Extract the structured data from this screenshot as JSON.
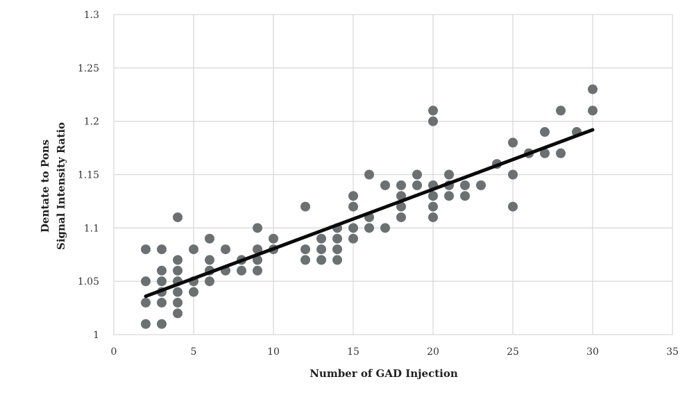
{
  "chart_data": {
    "type": "scatter",
    "xlabel": "Number of GAD Injection",
    "ylabel_lines": [
      "Dentate to Pons",
      "Signal Intensity Ratio"
    ],
    "xlim": [
      0,
      35
    ],
    "ylim": [
      1,
      1.3
    ],
    "x_ticks": [
      0,
      5,
      10,
      15,
      20,
      25,
      30,
      35
    ],
    "y_ticks": [
      1,
      1.05,
      1.1,
      1.15,
      1.2,
      1.25,
      1.3
    ],
    "x_tick_labels": [
      "0",
      "5",
      "10",
      "15",
      "20",
      "25",
      "30",
      "35"
    ],
    "y_tick_labels": [
      "1",
      "1.05",
      "1.1",
      "1.15",
      "1.2",
      "1.25",
      "1.3"
    ],
    "grid": true,
    "legend": "none",
    "colors": {
      "points": "#6b7073",
      "trendline": "#0a0a0a",
      "grid": "#d9d9d9",
      "background": "#ffffff"
    },
    "series": [
      {
        "points": [
          [
            2,
            1.08
          ],
          [
            2,
            1.05
          ],
          [
            2,
            1.03
          ],
          [
            2,
            1.01
          ],
          [
            3,
            1.08
          ],
          [
            3,
            1.06
          ],
          [
            3,
            1.05
          ],
          [
            3,
            1.04
          ],
          [
            3,
            1.03
          ],
          [
            3,
            1.01
          ],
          [
            4,
            1.11
          ],
          [
            4,
            1.07
          ],
          [
            4,
            1.06
          ],
          [
            4,
            1.05
          ],
          [
            4,
            1.04
          ],
          [
            4,
            1.03
          ],
          [
            4,
            1.02
          ],
          [
            5,
            1.08
          ],
          [
            5,
            1.05
          ],
          [
            5,
            1.04
          ],
          [
            6,
            1.09
          ],
          [
            6,
            1.07
          ],
          [
            6,
            1.06
          ],
          [
            6,
            1.05
          ],
          [
            7,
            1.08
          ],
          [
            7,
            1.06
          ],
          [
            8,
            1.07
          ],
          [
            8,
            1.06
          ],
          [
            9,
            1.1
          ],
          [
            9,
            1.08
          ],
          [
            9,
            1.07
          ],
          [
            9,
            1.06
          ],
          [
            10,
            1.09
          ],
          [
            10,
            1.08
          ],
          [
            12,
            1.12
          ],
          [
            12,
            1.08
          ],
          [
            12,
            1.07
          ],
          [
            13,
            1.09
          ],
          [
            13,
            1.08
          ],
          [
            13,
            1.07
          ],
          [
            14,
            1.1
          ],
          [
            14,
            1.09
          ],
          [
            14,
            1.08
          ],
          [
            14,
            1.07
          ],
          [
            15,
            1.13
          ],
          [
            15,
            1.12
          ],
          [
            15,
            1.1
          ],
          [
            15,
            1.09
          ],
          [
            16,
            1.15
          ],
          [
            16,
            1.11
          ],
          [
            16,
            1.1
          ],
          [
            17,
            1.14
          ],
          [
            17,
            1.1
          ],
          [
            18,
            1.14
          ],
          [
            18,
            1.13
          ],
          [
            18,
            1.12
          ],
          [
            18,
            1.11
          ],
          [
            19,
            1.15
          ],
          [
            19,
            1.14
          ],
          [
            20,
            1.21
          ],
          [
            20,
            1.2
          ],
          [
            20,
            1.14
          ],
          [
            20,
            1.13
          ],
          [
            20,
            1.12
          ],
          [
            20,
            1.11
          ],
          [
            21,
            1.15
          ],
          [
            21,
            1.14
          ],
          [
            21,
            1.13
          ],
          [
            22,
            1.14
          ],
          [
            22,
            1.13
          ],
          [
            23,
            1.14
          ],
          [
            24,
            1.16
          ],
          [
            25,
            1.18
          ],
          [
            25,
            1.15
          ],
          [
            25,
            1.12
          ],
          [
            26,
            1.17
          ],
          [
            27,
            1.19
          ],
          [
            27,
            1.17
          ],
          [
            28,
            1.21
          ],
          [
            28,
            1.17
          ],
          [
            29,
            1.19
          ],
          [
            30,
            1.23
          ],
          [
            30,
            1.21
          ]
        ]
      }
    ],
    "trendline": {
      "x": [
        2,
        30
      ],
      "y": [
        1.036,
        1.192
      ]
    }
  }
}
